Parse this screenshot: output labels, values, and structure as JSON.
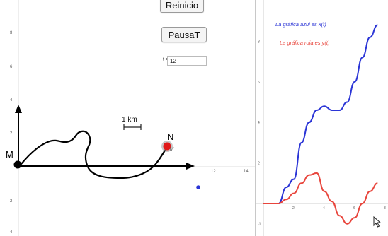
{
  "controls": {
    "reset_label": "Reinicio",
    "pause_label": "PausaT",
    "t_label": "t =",
    "t_value": "12"
  },
  "left_graph": {
    "y_ticks": [
      "8",
      "6",
      "4",
      "2",
      "-2",
      "-4"
    ],
    "x_ticks": [
      "12",
      "14"
    ],
    "scale_label": "1 km",
    "point_m_label": "M",
    "point_n_label": "N",
    "point_n_sublabel": "M'"
  },
  "right_graph": {
    "blue_caption": "La gráfica azul es x(t)",
    "red_caption": "La gráfica roja es y(t)",
    "y_ticks": [
      "8",
      "6",
      "4",
      "2",
      "-1"
    ],
    "x_ticks": [
      "2",
      "4",
      "6",
      "8"
    ],
    "colors": {
      "blue": "#2b35d6",
      "red": "#e8453c"
    }
  },
  "chart_data": {
    "type": "line",
    "x": [
      0,
      0.5,
      1,
      1.5,
      2,
      2.5,
      3,
      3.5,
      4,
      4.5,
      5,
      5.5,
      6,
      6.5,
      7,
      7.5
    ],
    "series": [
      {
        "name": "x(t)",
        "values": [
          0,
          0,
          0,
          0.8,
          1.2,
          3.0,
          4.0,
          4.6,
          4.8,
          4.6,
          4.6,
          5.0,
          6.0,
          7.2,
          8.2,
          8.8
        ]
      },
      {
        "name": "y(t)",
        "values": [
          0,
          0,
          0,
          0.2,
          0.5,
          1.0,
          1.4,
          1.5,
          0.6,
          0.1,
          -0.6,
          -1.0,
          -0.7,
          0.0,
          0.6,
          1.0
        ]
      }
    ],
    "ylim": [
      -1.5,
      9
    ],
    "xlim": [
      -0.5,
      8
    ]
  }
}
